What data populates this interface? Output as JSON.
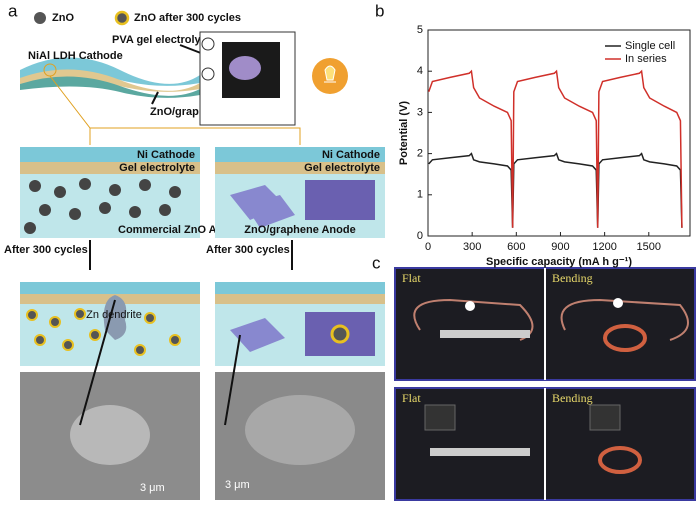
{
  "panel_labels": [
    "a",
    "b",
    "c"
  ],
  "panel_a": {
    "legend": [
      "ZnO",
      "ZnO after 300 cycles"
    ],
    "device": {
      "electrolyte": "PVA gel electrolyte",
      "cathode": "NiAl LDH Cathode",
      "anode": "ZnO/graphene Anode"
    },
    "left": {
      "cathode": "Ni Cathode",
      "electrolyte": "Gel electrolyte",
      "anode": "Commercial ZnO Anode",
      "step": "After 300 cycles",
      "dendrite": "Zn dendrite",
      "scale": "3 μm"
    },
    "right": {
      "cathode": "Ni Cathode",
      "electrolyte": "Gel electrolyte",
      "anode": "ZnO/graphene Anode",
      "step": "After 300 cycles",
      "scale": "3 μm"
    }
  },
  "panel_c": {
    "photos": [
      "Flat",
      "Bending",
      "Flat",
      "Bending"
    ]
  },
  "chart_data": {
    "type": "line",
    "xlabel": "Specific capacity (mA h g⁻¹)",
    "ylabel": "Potential (V)",
    "x": [
      5,
      30,
      150,
      280,
      295,
      310,
      350,
      450,
      540,
      565,
      575,
      583,
      608,
      728,
      858,
      873,
      888,
      928,
      1028,
      1118,
      1143,
      1153,
      1161,
      1186,
      1306,
      1436,
      1451,
      1466,
      1506,
      1606,
      1690,
      1715,
      1725
    ],
    "series": [
      {
        "name": "Single cell",
        "color": "#222222",
        "values": [
          1.75,
          1.85,
          1.9,
          1.95,
          2.0,
          1.85,
          1.8,
          1.75,
          1.7,
          1.6,
          0.2,
          1.75,
          1.85,
          1.9,
          1.95,
          2.0,
          1.85,
          1.8,
          1.75,
          1.7,
          1.6,
          0.2,
          1.75,
          1.85,
          1.9,
          1.95,
          2.0,
          1.85,
          1.8,
          1.75,
          1.7,
          1.6,
          0.2
        ]
      },
      {
        "name": "In series",
        "color": "#d0302a",
        "values": [
          3.5,
          3.75,
          3.85,
          3.95,
          4.0,
          3.6,
          3.35,
          3.15,
          3.0,
          2.8,
          0.2,
          3.5,
          3.75,
          3.85,
          3.95,
          4.0,
          3.6,
          3.35,
          3.15,
          3.0,
          2.8,
          0.2,
          3.5,
          3.75,
          3.85,
          3.95,
          4.0,
          3.6,
          3.35,
          3.15,
          3.0,
          2.8,
          0.2
        ]
      }
    ],
    "xlim": [
      0,
      1780
    ],
    "xticks": [
      0,
      300,
      600,
      900,
      1200,
      1500
    ],
    "ylim": [
      0,
      5
    ],
    "yticks": [
      0,
      1,
      2,
      3,
      4,
      5
    ],
    "legend": "upper right"
  }
}
